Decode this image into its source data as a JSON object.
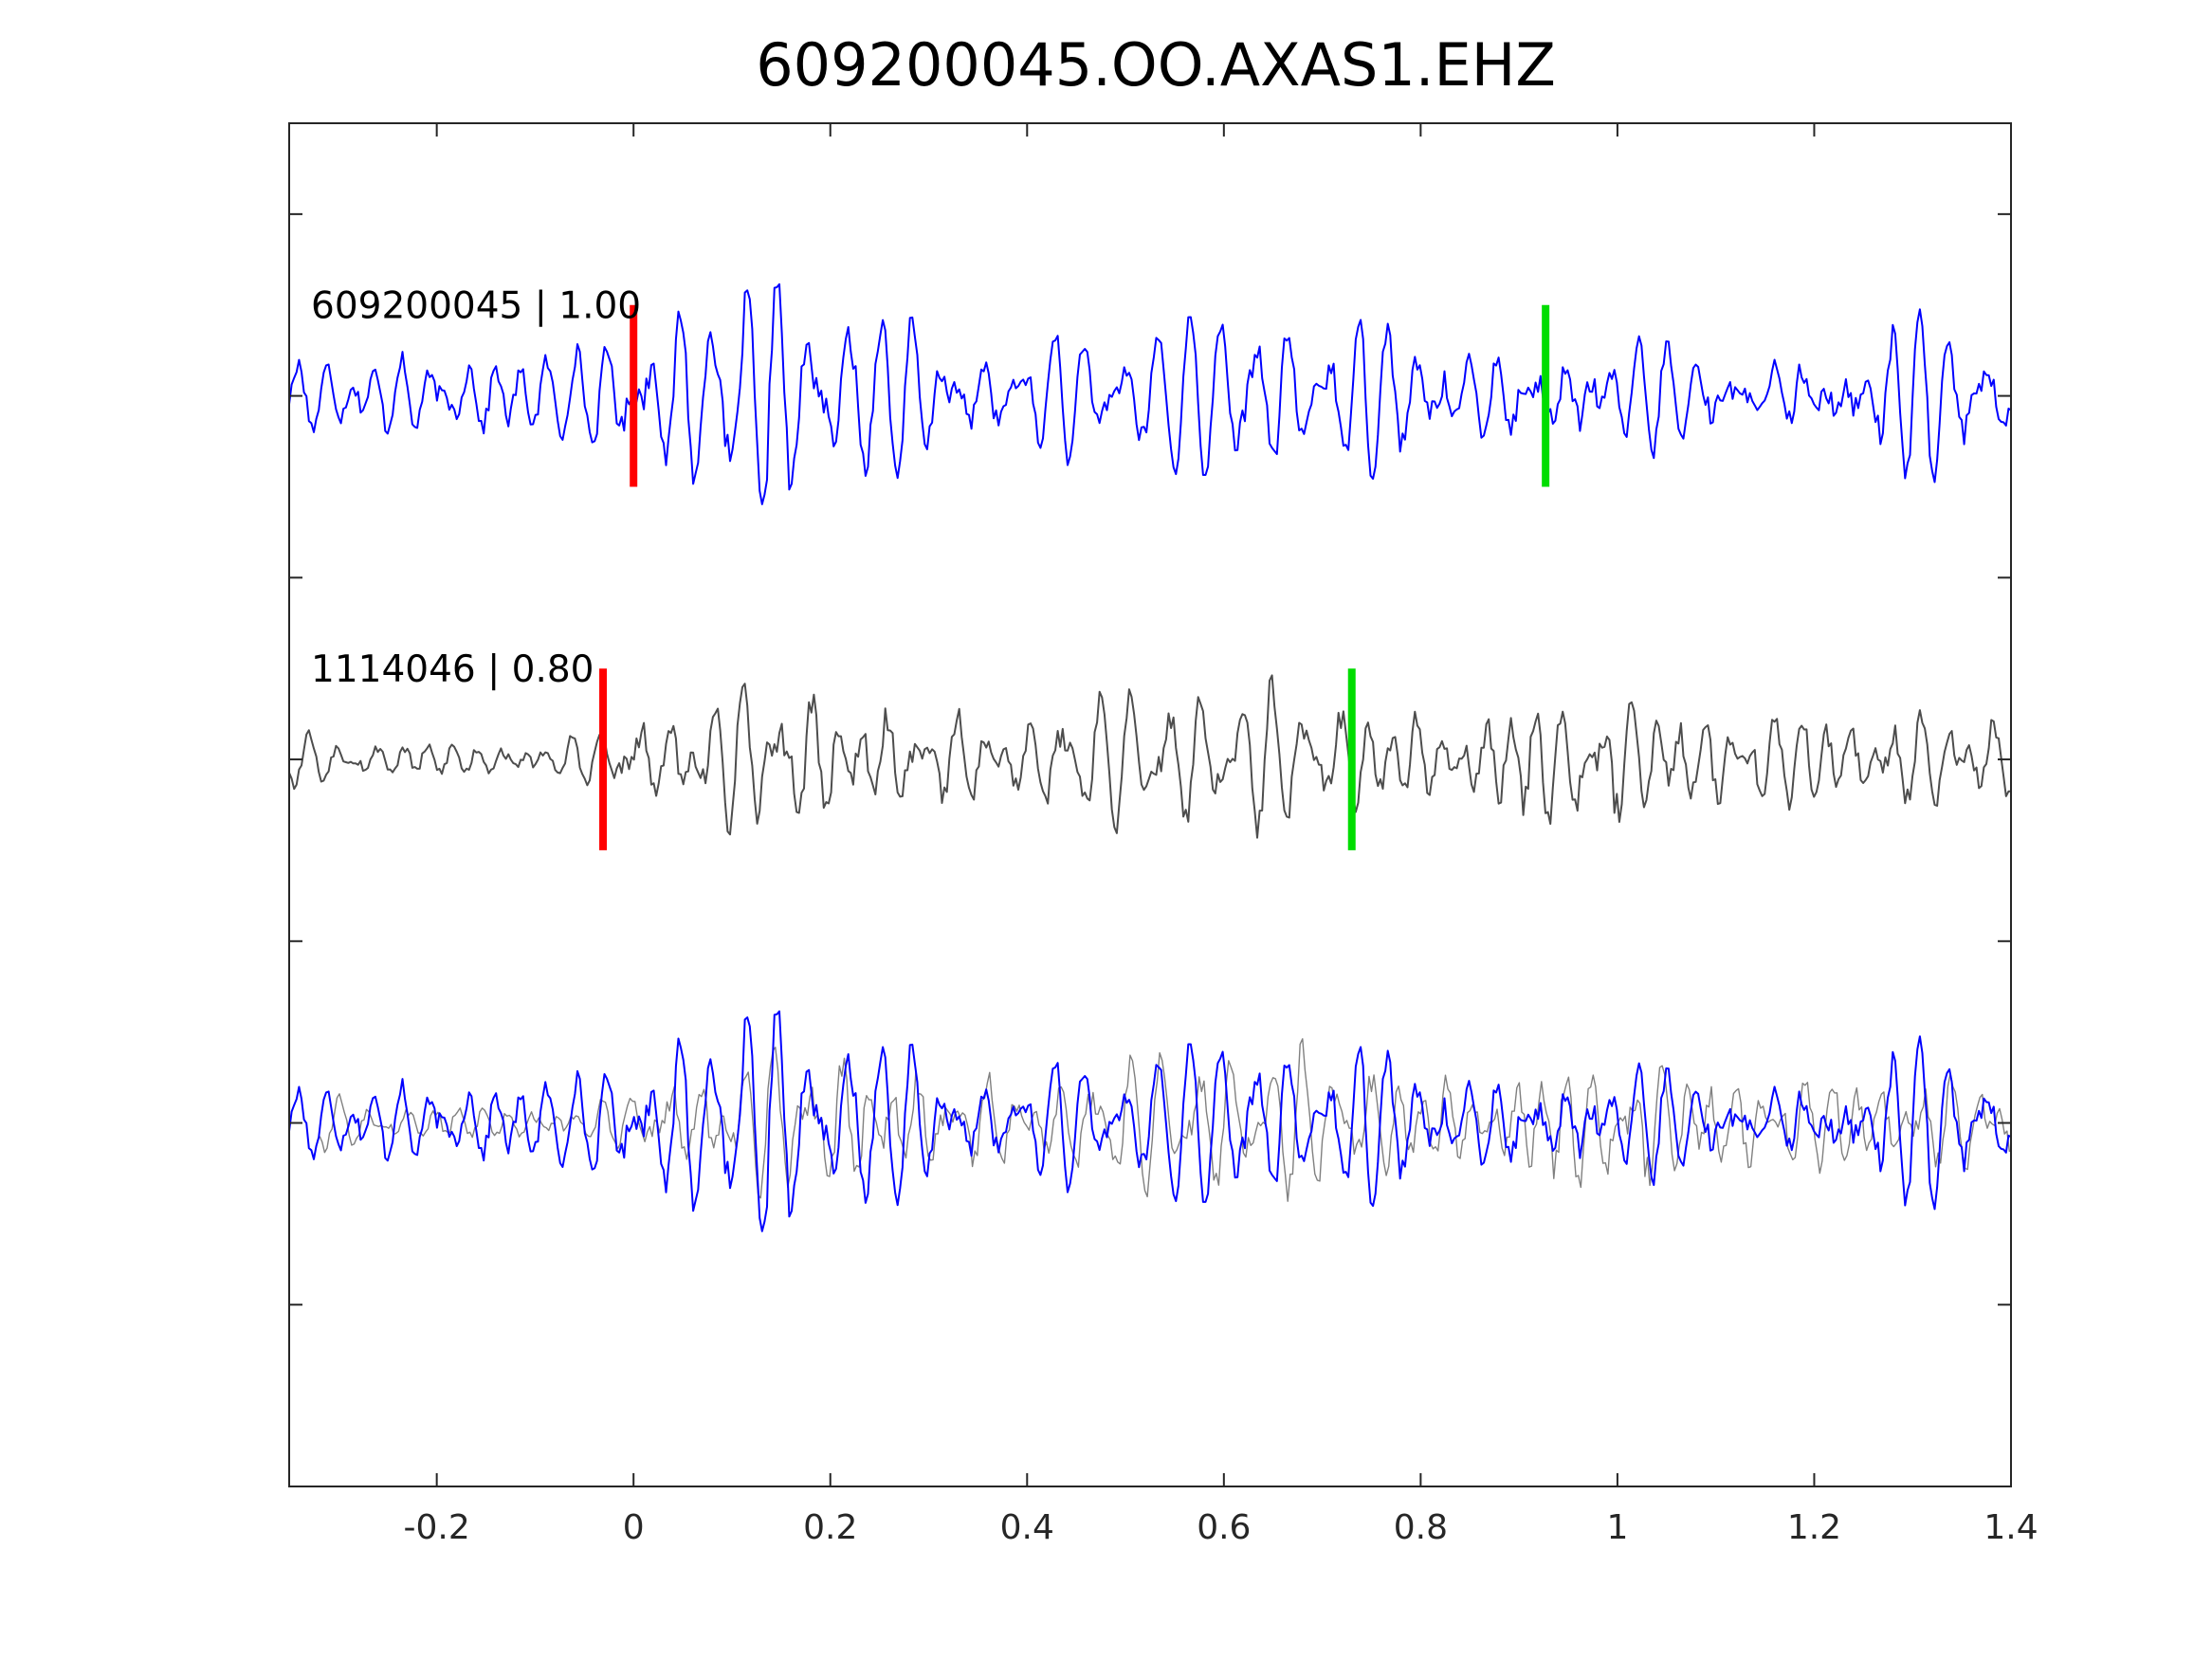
{
  "chart_data": {
    "type": "line",
    "title": "609200045.OO.AXAS1.EHZ",
    "xlim": [
      -0.35,
      1.4
    ],
    "xticks": [
      -0.2,
      0,
      0.2,
      0.4,
      0.6,
      0.8,
      1,
      1.2,
      1.4
    ],
    "xtick_labels": [
      "-0.2",
      "0",
      "0.2",
      "0.4",
      "0.6",
      "0.8",
      "1",
      "1.2",
      "1.4"
    ],
    "ylim": [
      -0.5,
      3.25
    ],
    "yticks": [
      0,
      0.5,
      1,
      1.5,
      2,
      2.5,
      3
    ],
    "xlabel": "",
    "ylabel": "",
    "grid": false,
    "traces": [
      {
        "label": "609200045 | 1.00",
        "offset": 2.5,
        "amplitude": 0.28,
        "color": "#0000ff",
        "seed": 17,
        "p_pick": 0.0,
        "s_pick": 0.927,
        "envelope": [
          [
            -0.35,
            0.45
          ],
          [
            -0.1,
            0.55
          ],
          [
            0.0,
            0.75
          ],
          [
            0.15,
            1.0
          ],
          [
            0.35,
            0.55
          ],
          [
            0.55,
            0.7
          ],
          [
            0.8,
            0.75
          ],
          [
            0.9,
            0.85
          ],
          [
            1.0,
            0.5
          ],
          [
            1.2,
            0.8
          ],
          [
            1.4,
            0.75
          ]
        ]
      },
      {
        "label": "1114046 | 0.80",
        "offset": 1.5,
        "amplitude": 0.28,
        "color": "#4d4d4d",
        "seed": 53,
        "p_pick": -0.031,
        "s_pick": 0.73,
        "envelope": [
          [
            -0.35,
            0.3
          ],
          [
            -0.05,
            0.3
          ],
          [
            0.0,
            0.6
          ],
          [
            0.15,
            0.95
          ],
          [
            0.35,
            0.55
          ],
          [
            0.6,
            0.8
          ],
          [
            0.75,
            0.65
          ],
          [
            0.9,
            0.9
          ],
          [
            0.98,
            1.0
          ],
          [
            1.1,
            0.75
          ],
          [
            1.4,
            0.55
          ]
        ]
      }
    ],
    "overlay": {
      "offset": 0.5,
      "series": [
        {
          "trace": 0,
          "color": "#0000ff",
          "width": 2,
          "shift": 0.0
        },
        {
          "trace": 1,
          "color": "#808080",
          "width": 1.4,
          "shift": 0.031
        }
      ]
    },
    "pick_colors": {
      "p": "#ff0000",
      "s": "#00dd00"
    }
  }
}
